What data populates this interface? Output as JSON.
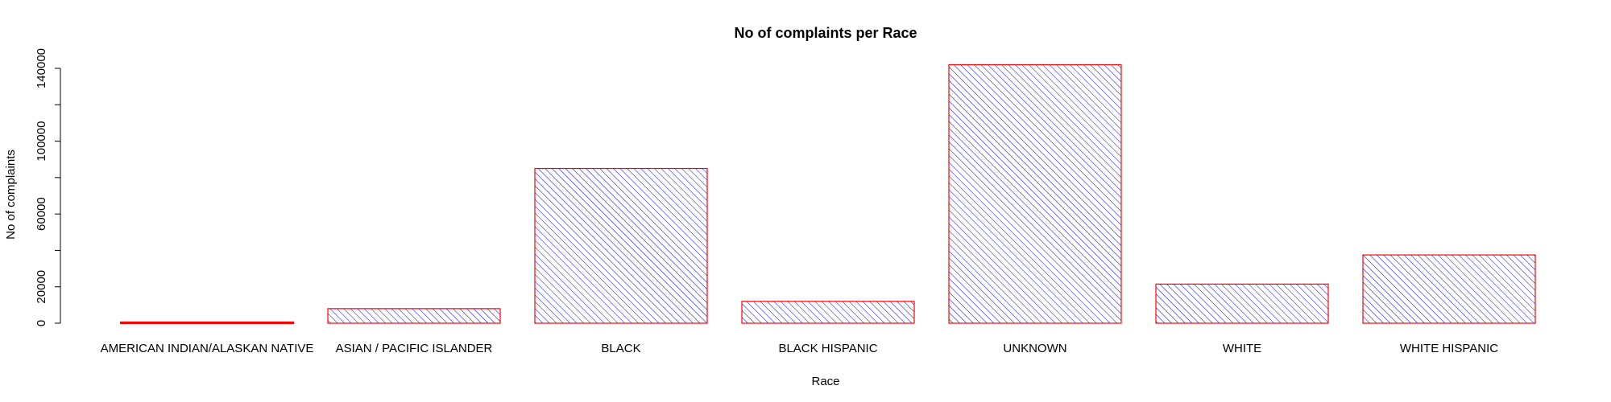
{
  "chart_data": {
    "type": "bar",
    "title": "No of complaints per Race",
    "xlabel": "Race",
    "ylabel": "No of complaints",
    "categories": [
      "AMERICAN INDIAN/ALASKAN NATIVE",
      "ASIAN / PACIFIC ISLANDER",
      "BLACK",
      "BLACK HISPANIC",
      "UNKNOWN",
      "WHITE",
      "WHITE HISPANIC"
    ],
    "values": [
      500,
      8000,
      85000,
      12000,
      142000,
      21500,
      37500
    ],
    "ylim": [
      0,
      150000
    ],
    "yticks": [
      0,
      20000,
      60000,
      100000,
      140000
    ],
    "grid": false,
    "legend": "none",
    "colors": {
      "bar_border": "#ff0000",
      "hatch": "#0000ff",
      "axis": "#000000"
    }
  }
}
